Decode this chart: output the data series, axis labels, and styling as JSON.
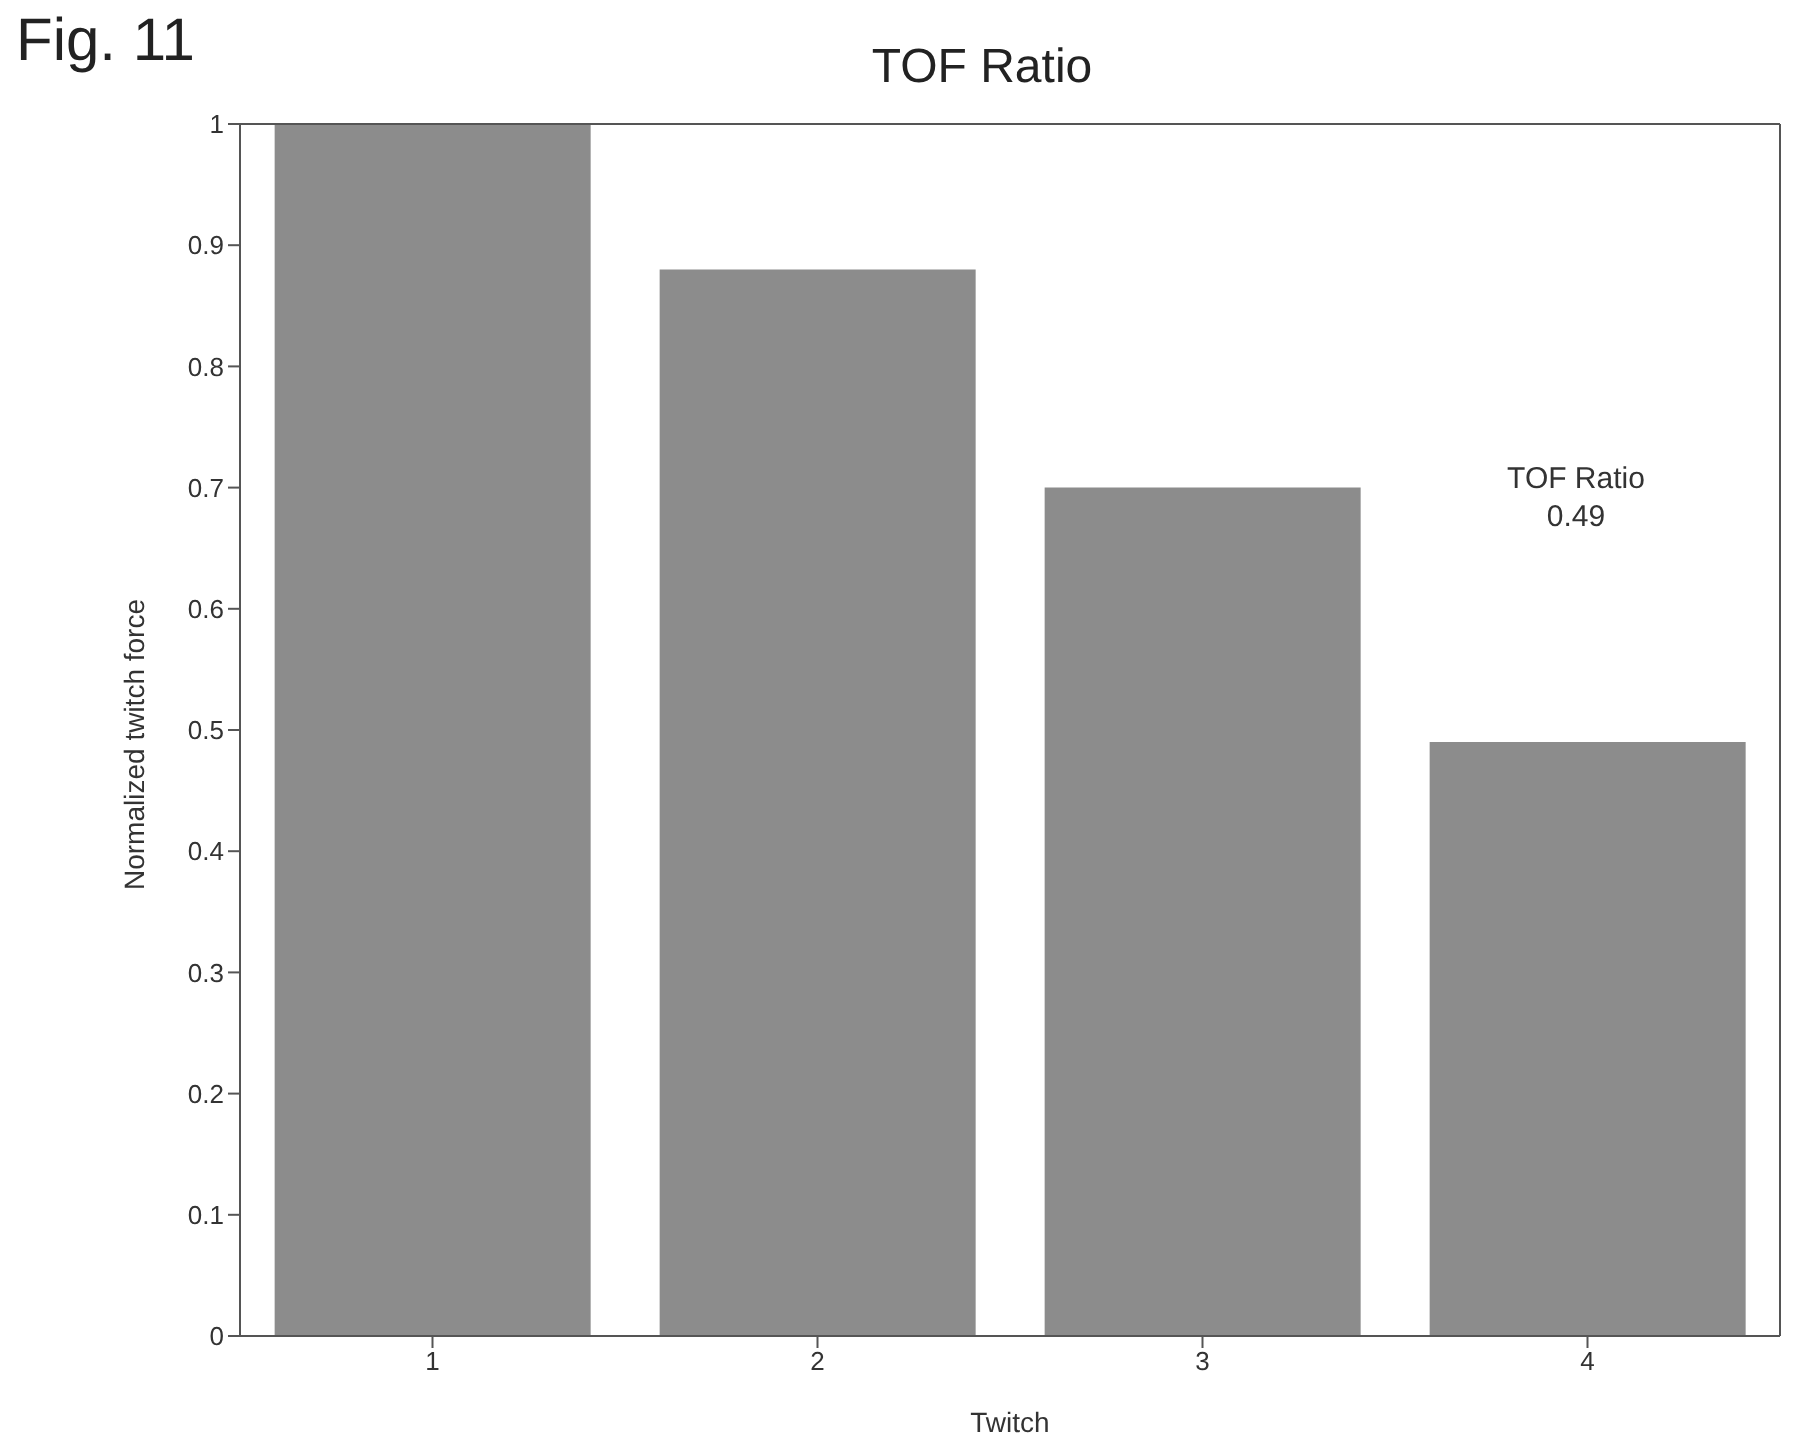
{
  "chart_data": {
    "type": "bar",
    "title": "TOF Ratio",
    "xlabel": "Twitch",
    "ylabel": "Normalized twitch force",
    "categories": [
      "1",
      "2",
      "3",
      "4"
    ],
    "values": [
      1,
      0.88,
      0.7,
      0.49
    ],
    "color": "#8c8c8c",
    "ylim": [
      0,
      1
    ],
    "yticks": [
      0,
      0.1,
      0.2,
      0.3,
      0.4,
      0.5,
      0.6,
      0.7,
      0.8,
      0.9,
      1
    ],
    "annotations": [
      "Fig. 11",
      "TOF Ratio\n0.49"
    ]
  }
}
